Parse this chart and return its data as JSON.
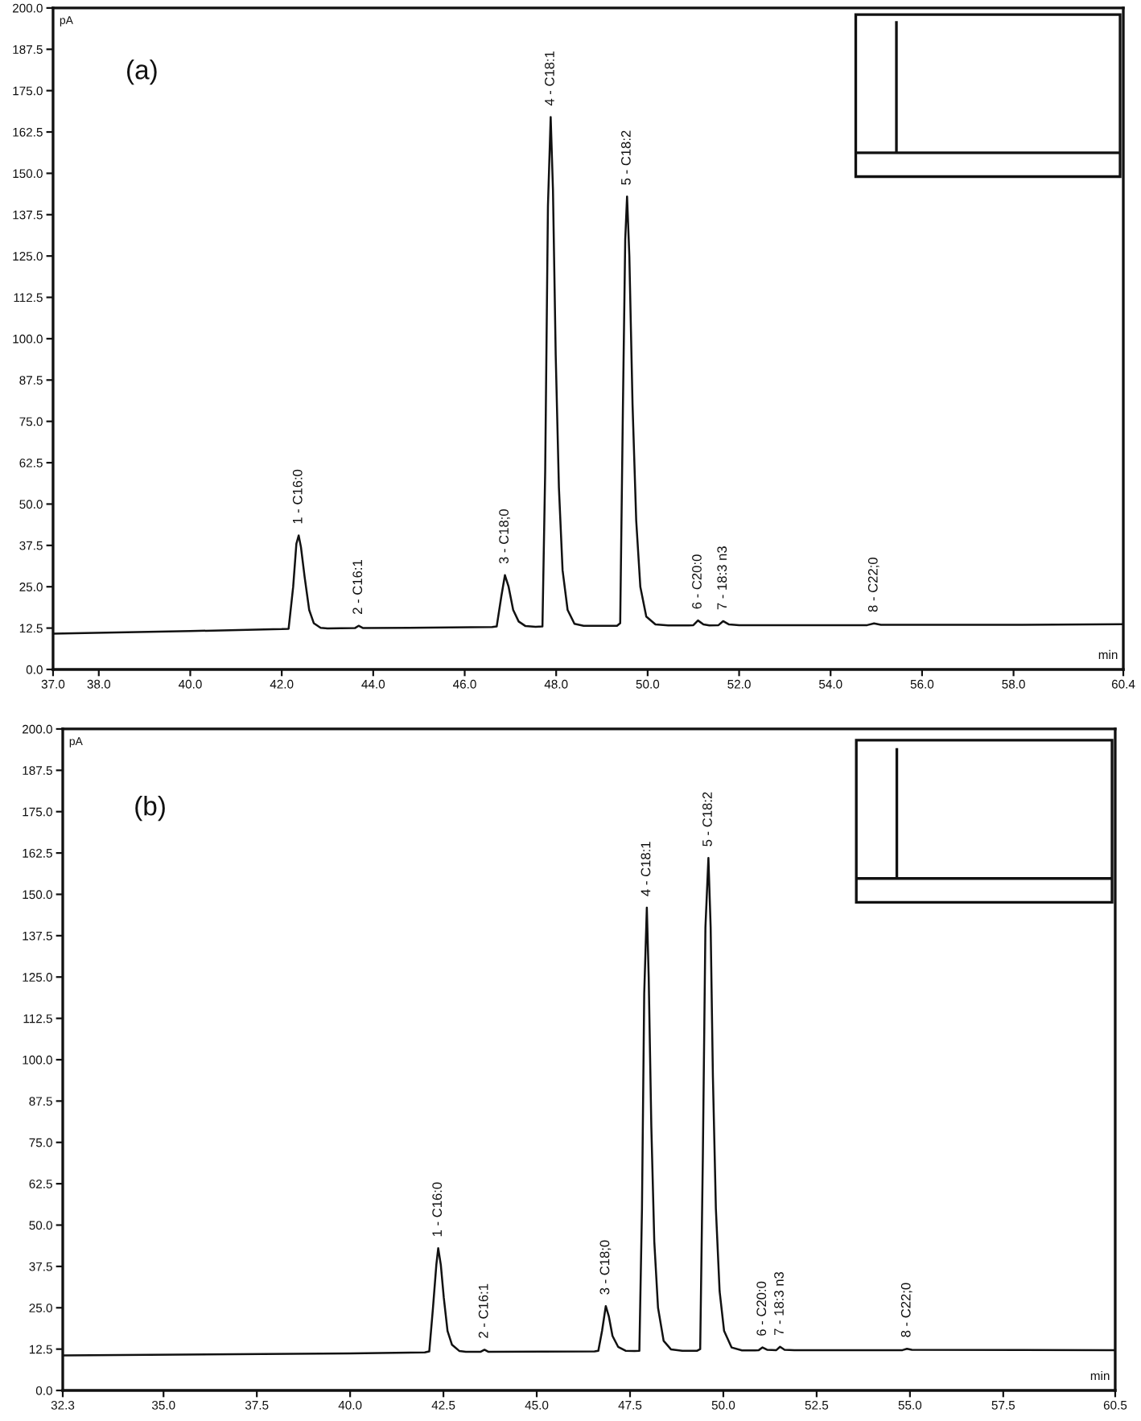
{
  "chart_data": [
    {
      "type": "line",
      "title": "(a)",
      "xlabel": "min",
      "ylabel": "pA",
      "xlim": [
        37.0,
        60.4
      ],
      "ylim": [
        0,
        200
      ],
      "xticks": [
        {
          "value": 37,
          "label": "37.0"
        },
        {
          "value": 38,
          "label": "38.0"
        },
        {
          "value": 40,
          "label": "40.0"
        },
        {
          "value": 42,
          "label": "42.0"
        },
        {
          "value": 44,
          "label": "44.0"
        },
        {
          "value": 46,
          "label": "46.0"
        },
        {
          "value": 48,
          "label": "48.0"
        },
        {
          "value": 50,
          "label": "50.0"
        },
        {
          "value": 52,
          "label": "52.0"
        },
        {
          "value": 54,
          "label": "54.0"
        },
        {
          "value": 56,
          "label": "56.0"
        },
        {
          "value": 58,
          "label": "58.0"
        },
        60.4
      ],
      "yticks": [
        {
          "value": 0,
          "label": "0.0"
        },
        12.5,
        {
          "value": 25,
          "label": "25.0"
        },
        37.5,
        {
          "value": 50,
          "label": "50.0"
        },
        62.5,
        {
          "value": 75,
          "label": "75.0"
        },
        87.5,
        {
          "value": 100,
          "label": "100.0"
        },
        112.5,
        {
          "value": 125,
          "label": "125.0"
        },
        137.5,
        {
          "value": 150,
          "label": "150.0"
        },
        162.5,
        {
          "value": 175,
          "label": "175.0"
        },
        187.5,
        {
          "value": 200,
          "label": "200.0"
        }
      ],
      "series": [
        {
          "color": "#111111",
          "x": [
            37.0,
            40.0,
            42.0,
            42.15,
            42.25,
            42.32,
            42.37,
            42.42,
            42.5,
            42.6,
            42.7,
            42.85,
            43.0,
            43.6,
            43.68,
            43.78,
            46.6,
            46.7,
            46.8,
            46.88,
            46.96,
            47.06,
            47.18,
            47.33,
            47.55,
            47.7,
            47.76,
            47.82,
            47.88,
            47.93,
            47.99,
            48.06,
            48.14,
            48.25,
            48.4,
            48.6,
            49.33,
            49.4,
            49.46,
            49.51,
            49.55,
            49.6,
            49.67,
            49.75,
            49.84,
            49.97,
            50.17,
            50.45,
            50.9,
            51.0,
            51.1,
            51.22,
            51.35,
            51.55,
            51.65,
            51.78,
            52.0,
            54.8,
            54.95,
            55.1,
            58.0,
            60.4
          ],
          "values": [
            10.8,
            11.6,
            12.2,
            12.3,
            25,
            38,
            40.5,
            37,
            28,
            18,
            14,
            12.6,
            12.4,
            12.5,
            13.2,
            12.5,
            12.8,
            13,
            22,
            28.5,
            25,
            18,
            14.5,
            13.1,
            12.9,
            13,
            60,
            140,
            167,
            145,
            95,
            55,
            30,
            18,
            13.8,
            13.2,
            13.2,
            14,
            80,
            130,
            143,
            125,
            80,
            45,
            25,
            16,
            13.6,
            13.3,
            13.3,
            13.4,
            14.8,
            13.6,
            13.3,
            13.4,
            14.6,
            13.6,
            13.4,
            13.4,
            13.9,
            13.5,
            13.5,
            13.7
          ]
        }
      ],
      "annotations": [
        {
          "text": "1 - C16:0",
          "x": 42.37,
          "y": 40.5
        },
        {
          "text": "2 - C16:1",
          "x": 43.68,
          "y": 13.2
        },
        {
          "text": "3 - C18;0",
          "x": 46.88,
          "y": 28.5
        },
        {
          "text": "4 - C18:1",
          "x": 47.88,
          "y": 167
        },
        {
          "text": "5 - C18:2",
          "x": 49.55,
          "y": 143
        },
        {
          "text": "6 - C20:0",
          "x": 51.1,
          "y": 14.8
        },
        {
          "text": "7 - 18:3 n3",
          "x": 51.65,
          "y": 14.6
        },
        {
          "text": "8 - C22;0",
          "x": 54.95,
          "y": 13.9
        }
      ]
    },
    {
      "type": "line",
      "title": "(b)",
      "xlabel": "min",
      "ylabel": "pA",
      "xlim": [
        32.3,
        60.5
      ],
      "ylim": [
        0,
        200
      ],
      "xticks": [
        32.3,
        {
          "value": 35,
          "label": "35.0"
        },
        37.5,
        {
          "value": 40,
          "label": "40.0"
        },
        42.5,
        {
          "value": 45,
          "label": "45.0"
        },
        47.5,
        {
          "value": 50,
          "label": "50.0"
        },
        52.5,
        {
          "value": 55,
          "label": "55.0"
        },
        57.5,
        60.5
      ],
      "yticks": [
        {
          "value": 0,
          "label": "0.0"
        },
        12.5,
        {
          "value": 25,
          "label": "25.0"
        },
        37.5,
        {
          "value": 50,
          "label": "50.0"
        },
        62.5,
        {
          "value": 75,
          "label": "75.0"
        },
        87.5,
        {
          "value": 100,
          "label": "100.0"
        },
        112.5,
        {
          "value": 125,
          "label": "125.0"
        },
        137.5,
        {
          "value": 150,
          "label": "150.0"
        },
        162.5,
        {
          "value": 175,
          "label": "175.0"
        },
        187.5,
        {
          "value": 200,
          "label": "200.0"
        }
      ],
      "series": [
        {
          "color": "#111111",
          "x": [
            32.3,
            40.0,
            42.0,
            42.12,
            42.22,
            42.31,
            42.36,
            42.43,
            42.51,
            42.61,
            42.73,
            42.93,
            43.1,
            43.5,
            43.6,
            43.7,
            46.55,
            46.65,
            46.75,
            46.85,
            46.93,
            47.03,
            47.18,
            47.38,
            47.62,
            47.75,
            47.82,
            47.88,
            47.95,
            48.0,
            48.07,
            48.15,
            48.25,
            48.4,
            48.6,
            48.9,
            49.3,
            49.38,
            49.45,
            49.52,
            49.6,
            49.66,
            49.72,
            49.8,
            49.9,
            50.02,
            50.22,
            50.5,
            50.85,
            50.95,
            51.05,
            51.17,
            51.42,
            51.52,
            51.64,
            51.9,
            54.8,
            54.92,
            55.05,
            60.5
          ],
          "values": [
            10.6,
            11.2,
            11.5,
            11.8,
            25,
            38,
            43,
            38,
            28,
            18,
            13.8,
            11.9,
            11.7,
            11.7,
            12.3,
            11.7,
            11.8,
            12.0,
            18,
            25.5,
            22.5,
            16.5,
            13.2,
            12.0,
            11.9,
            12.0,
            55,
            120,
            146,
            125,
            80,
            45,
            25,
            15,
            12.4,
            12.0,
            12.0,
            12.5,
            70,
            140,
            161,
            140,
            95,
            55,
            30,
            18,
            13,
            12.1,
            12.1,
            12.2,
            13.0,
            12.3,
            12.2,
            13.2,
            12.3,
            12.2,
            12.2,
            12.6,
            12.3,
            12.2
          ]
        }
      ],
      "annotations": [
        {
          "text": "1 - C16:0",
          "x": 42.36,
          "y": 43
        },
        {
          "text": "2 - C16:1",
          "x": 43.6,
          "y": 12.3
        },
        {
          "text": "3 - C18;0",
          "x": 46.85,
          "y": 25.5
        },
        {
          "text": "4 - C18:1",
          "x": 47.95,
          "y": 146
        },
        {
          "text": "5 - C18:2",
          "x": 49.6,
          "y": 161
        },
        {
          "text": "6 - C20:0",
          "x": 51.05,
          "y": 13.0
        },
        {
          "text": "7 - 18:3 n3",
          "x": 51.52,
          "y": 13.2
        },
        {
          "text": "8 - C22;0",
          "x": 54.92,
          "y": 12.6
        }
      ]
    }
  ]
}
